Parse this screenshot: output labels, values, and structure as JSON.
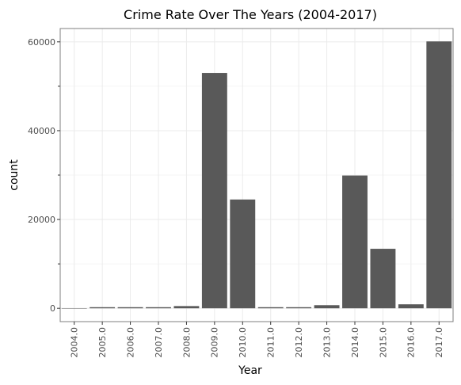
{
  "chart_data": {
    "type": "bar",
    "title": "Crime Rate Over The Years (2004-2017)",
    "xlabel": "Year",
    "ylabel": "count",
    "categories": [
      "2004.0",
      "2005.0",
      "2006.0",
      "2007.0",
      "2008.0",
      "2009.0",
      "2010.0",
      "2011.0",
      "2012.0",
      "2013.0",
      "2014.0",
      "2015.0",
      "2016.0",
      "2017.0"
    ],
    "values": [
      30,
      250,
      250,
      250,
      500,
      53000,
      24500,
      250,
      250,
      700,
      29900,
      13400,
      900,
      60100
    ],
    "ylim": [
      -3000,
      63000
    ],
    "yticks": [
      0,
      20000,
      40000,
      60000
    ],
    "ytick_labels": [
      "0",
      "20000",
      "40000",
      "60000"
    ],
    "grid": true,
    "bar_color": "#595959",
    "grid_color": "#ebebeb",
    "frame_color": "#7f7f7f"
  }
}
